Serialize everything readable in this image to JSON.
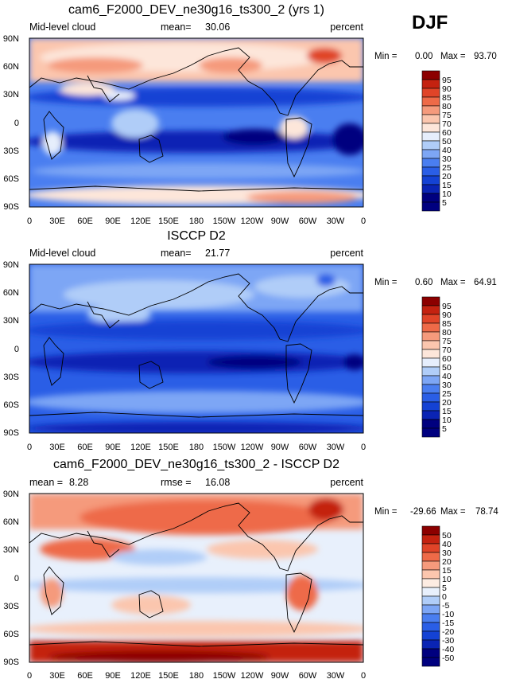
{
  "season": "DJF",
  "panels": [
    {
      "title": "cam6_F2000_DEV_ne30g16_ts300_2 (yrs 1)",
      "left_label": "Mid-level cloud",
      "stat_label": "mean=",
      "stat_value": "30.06",
      "right_label": "percent",
      "min_label": "Min =",
      "min_value": "0.00",
      "max_label": "Max =",
      "max_value": "93.70",
      "colorbar": [
        "95",
        "90",
        "85",
        "80",
        "75",
        "70",
        "60",
        "50",
        "40",
        "30",
        "25",
        "20",
        "15",
        "10",
        "5"
      ],
      "palette": "abs"
    },
    {
      "title": "ISCCP D2",
      "left_label": "Mid-level cloud",
      "stat_label": "mean=",
      "stat_value": "21.77",
      "right_label": "percent",
      "min_label": "Min =",
      "min_value": "0.60",
      "max_label": "Max =",
      "max_value": "64.91",
      "colorbar": [
        "95",
        "90",
        "85",
        "80",
        "75",
        "70",
        "60",
        "50",
        "40",
        "30",
        "25",
        "20",
        "15",
        "10",
        "5"
      ],
      "palette": "abs"
    },
    {
      "title": "cam6_F2000_DEV_ne30g16_ts300_2 - ISCCP D2",
      "left_label": "mean =",
      "left_value": "8.28",
      "stat_label": "rmse =",
      "stat_value": "16.08",
      "right_label": "percent",
      "min_label": "Min =",
      "min_value": "-29.66",
      "max_label": "Max =",
      "max_value": "78.74",
      "colorbar": [
        "50",
        "40",
        "30",
        "20",
        "15",
        "10",
        "5",
        "0",
        "-5",
        "-10",
        "-15",
        "-20",
        "-30",
        "-40",
        "-50"
      ],
      "palette": "diff"
    }
  ],
  "lat_ticks": [
    "90N",
    "60N",
    "30N",
    "0",
    "30S",
    "60S",
    "90S"
  ],
  "lon_ticks": [
    "0",
    "30E",
    "60E",
    "90E",
    "120E",
    "150E",
    "180",
    "150W",
    "120W",
    "90W",
    "60W",
    "30W",
    "0"
  ],
  "colors": {
    "abs": [
      "#00007f",
      "#0a24b4",
      "#1442d4",
      "#2a5ee6",
      "#4a7ef0",
      "#7da6f5",
      "#b0cdf8",
      "#e6eefc",
      "#fde6da",
      "#fbc6ae",
      "#f59a7c",
      "#ee6a48",
      "#e04428",
      "#c42210",
      "#8c0000"
    ],
    "diff": [
      "#00007f",
      "#0a24b4",
      "#1442d4",
      "#2a5ee6",
      "#4a7ef0",
      "#7da6f5",
      "#b0cdf8",
      "#e8f0fc",
      "#fdece2",
      "#fbc6ae",
      "#f59a7c",
      "#ee6a48",
      "#e04428",
      "#c42210",
      "#8c0000"
    ]
  }
}
